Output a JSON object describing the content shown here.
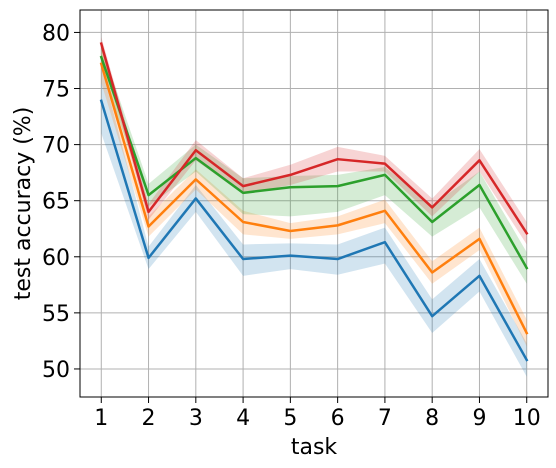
{
  "chart_data": {
    "type": "line",
    "title": "",
    "xlabel": "task",
    "ylabel": "test accuracy (%)",
    "x": [
      1,
      2,
      3,
      4,
      5,
      6,
      7,
      8,
      9,
      10
    ],
    "xticks": [
      "1",
      "2",
      "3",
      "4",
      "5",
      "6",
      "7",
      "8",
      "9",
      "10"
    ],
    "yticks": [
      "50",
      "55",
      "60",
      "65",
      "70",
      "75",
      "80"
    ],
    "ylim": [
      47.5,
      82
    ],
    "grid": true,
    "legend": "none",
    "series": [
      {
        "color": "#1f77b4",
        "values": [
          73.9,
          59.9,
          65.2,
          59.8,
          60.1,
          59.8,
          61.3,
          54.7,
          58.3,
          50.8
        ],
        "lower": [
          71.0,
          58.9,
          64.0,
          58.3,
          58.9,
          58.4,
          59.4,
          53.2,
          56.9,
          49.3
        ],
        "upper": [
          77.0,
          60.9,
          66.4,
          61.1,
          61.2,
          61.1,
          62.6,
          56.2,
          59.8,
          52.3
        ]
      },
      {
        "color": "#ff7f0e",
        "values": [
          77.2,
          62.7,
          66.9,
          63.1,
          62.3,
          62.8,
          64.1,
          58.6,
          61.6,
          53.2
        ],
        "lower": [
          75.5,
          61.8,
          66.0,
          62.0,
          61.6,
          62.0,
          63.0,
          57.6,
          60.6,
          52.0
        ],
        "upper": [
          78.8,
          63.6,
          67.8,
          64.1,
          63.0,
          63.6,
          65.1,
          59.6,
          62.6,
          54.4
        ]
      },
      {
        "color": "#2ca02c",
        "values": [
          77.8,
          65.5,
          68.8,
          65.7,
          66.2,
          66.3,
          67.3,
          63.1,
          66.4,
          59.0
        ],
        "lower": [
          76.8,
          64.5,
          67.6,
          63.8,
          63.6,
          64.0,
          65.5,
          61.8,
          64.4,
          57.6
        ],
        "upper": [
          78.8,
          66.5,
          70.0,
          67.0,
          67.2,
          67.3,
          68.0,
          64.6,
          67.6,
          60.4
        ]
      },
      {
        "color": "#d62728",
        "values": [
          79.0,
          64.0,
          69.5,
          66.3,
          67.3,
          68.7,
          68.3,
          64.4,
          68.6,
          62.1
        ],
        "lower": [
          78.4,
          63.3,
          68.6,
          65.6,
          66.4,
          67.6,
          67.6,
          63.6,
          67.6,
          61.1
        ],
        "upper": [
          79.6,
          64.7,
          70.4,
          67.0,
          68.2,
          69.8,
          69.0,
          65.2,
          69.6,
          63.1
        ]
      }
    ]
  }
}
